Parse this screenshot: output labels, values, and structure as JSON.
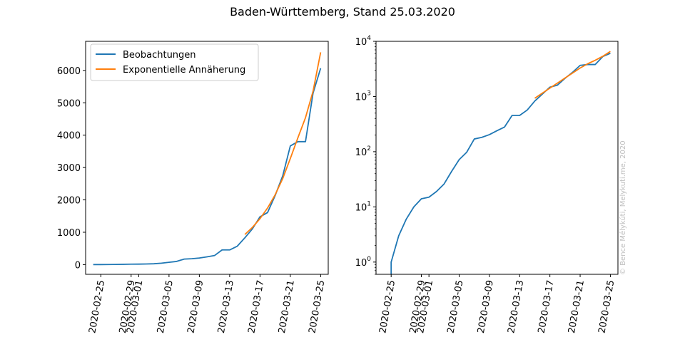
{
  "figure": {
    "title": "Baden-Württemberg, Stand 25.03.2020",
    "credit": "© Bence Mélykúti, Melykuti.me, 2020"
  },
  "chart_data": [
    {
      "type": "line",
      "scale": "linear",
      "xlim": [
        "2020-02-23",
        "2020-03-26"
      ],
      "ylim": [
        -300,
        6900
      ],
      "xticks": [
        "2020-02-25",
        "2020-02-29",
        "2020-03-01",
        "2020-03-05",
        "2020-03-09",
        "2020-03-13",
        "2020-03-17",
        "2020-03-21",
        "2020-03-25"
      ],
      "yticks": [
        0,
        1000,
        2000,
        3000,
        4000,
        5000,
        6000
      ],
      "ytick_labels": [
        "0",
        "1000",
        "2000",
        "3000",
        "4000",
        "5000",
        "6000"
      ],
      "legend": {
        "position": "upper-left"
      },
      "series": [
        {
          "name": "Beobachtungen",
          "color": "#1f77b4",
          "points": [
            [
              "2020-02-24",
              1
            ],
            [
              "2020-02-25",
              1
            ],
            [
              "2020-02-26",
              3
            ],
            [
              "2020-02-27",
              6
            ],
            [
              "2020-02-28",
              10
            ],
            [
              "2020-02-29",
              14
            ],
            [
              "2020-03-01",
              15
            ],
            [
              "2020-03-02",
              19
            ],
            [
              "2020-03-03",
              26
            ],
            [
              "2020-03-04",
              44
            ],
            [
              "2020-03-05",
              72
            ],
            [
              "2020-03-06",
              98
            ],
            [
              "2020-03-07",
              170
            ],
            [
              "2020-03-08",
              182
            ],
            [
              "2020-03-09",
              204
            ],
            [
              "2020-03-10",
              240
            ],
            [
              "2020-03-11",
              280
            ],
            [
              "2020-03-12",
              454
            ],
            [
              "2020-03-13",
              454
            ],
            [
              "2020-03-14",
              569
            ],
            [
              "2020-03-15",
              827
            ],
            [
              "2020-03-16",
              1105
            ],
            [
              "2020-03-17",
              1477
            ],
            [
              "2020-03-18",
              1609
            ],
            [
              "2020-03-19",
              2136
            ],
            [
              "2020-03-20",
              2746
            ],
            [
              "2020-03-21",
              3668
            ],
            [
              "2020-03-22",
              3800
            ],
            [
              "2020-03-23",
              3800
            ],
            [
              "2020-03-24",
              5300
            ],
            [
              "2020-03-25",
              6069
            ]
          ]
        },
        {
          "name": "Exponentielle Annäherung",
          "color": "#ff7f0e",
          "points": [
            [
              "2020-03-15",
              930
            ],
            [
              "2020-03-16",
              1150
            ],
            [
              "2020-03-17",
              1420
            ],
            [
              "2020-03-18",
              1750
            ],
            [
              "2020-03-19",
              2160
            ],
            [
              "2020-03-20",
              2660
            ],
            [
              "2020-03-21",
              3280
            ],
            [
              "2020-03-22",
              3920
            ],
            [
              "2020-03-23",
              4540
            ],
            [
              "2020-03-24",
              5360
            ],
            [
              "2020-03-25",
              6560
            ]
          ]
        }
      ]
    },
    {
      "type": "line",
      "scale": "log",
      "xlim": [
        "2020-02-23",
        "2020-03-26"
      ],
      "ylim": [
        0.6,
        10000
      ],
      "xticks": [
        "2020-02-25",
        "2020-02-29",
        "2020-03-01",
        "2020-03-05",
        "2020-03-09",
        "2020-03-13",
        "2020-03-17",
        "2020-03-21",
        "2020-03-25"
      ],
      "yticks": [
        1,
        10,
        100,
        1000,
        10000
      ],
      "ytick_mantissa": [
        "10",
        "10",
        "10",
        "10",
        "10"
      ],
      "ytick_exponents": [
        "0",
        "1",
        "2",
        "3",
        "4"
      ],
      "series": [
        {
          "name": "Beobachtungen",
          "color": "#1f77b4",
          "points": [
            [
              "2020-02-25",
              0.3
            ],
            [
              "2020-02-25",
              1
            ],
            [
              "2020-02-26",
              3
            ],
            [
              "2020-02-27",
              6
            ],
            [
              "2020-02-28",
              10
            ],
            [
              "2020-02-29",
              14
            ],
            [
              "2020-03-01",
              15
            ],
            [
              "2020-03-02",
              19
            ],
            [
              "2020-03-03",
              26
            ],
            [
              "2020-03-04",
              44
            ],
            [
              "2020-03-05",
              72
            ],
            [
              "2020-03-06",
              98
            ],
            [
              "2020-03-07",
              170
            ],
            [
              "2020-03-08",
              182
            ],
            [
              "2020-03-09",
              204
            ],
            [
              "2020-03-10",
              240
            ],
            [
              "2020-03-11",
              280
            ],
            [
              "2020-03-12",
              454
            ],
            [
              "2020-03-13",
              454
            ],
            [
              "2020-03-14",
              569
            ],
            [
              "2020-03-15",
              827
            ],
            [
              "2020-03-16",
              1105
            ],
            [
              "2020-03-17",
              1477
            ],
            [
              "2020-03-18",
              1609
            ],
            [
              "2020-03-19",
              2136
            ],
            [
              "2020-03-20",
              2746
            ],
            [
              "2020-03-21",
              3668
            ],
            [
              "2020-03-22",
              3800
            ],
            [
              "2020-03-23",
              3800
            ],
            [
              "2020-03-24",
              5300
            ],
            [
              "2020-03-25",
              6069
            ]
          ]
        },
        {
          "name": "Exponentielle Annäherung",
          "color": "#ff7f0e",
          "points": [
            [
              "2020-03-15",
              930
            ],
            [
              "2020-03-16",
              1150
            ],
            [
              "2020-03-17",
              1420
            ],
            [
              "2020-03-18",
              1750
            ],
            [
              "2020-03-19",
              2160
            ],
            [
              "2020-03-20",
              2660
            ],
            [
              "2020-03-21",
              3280
            ],
            [
              "2020-03-22",
              3920
            ],
            [
              "2020-03-23",
              4540
            ],
            [
              "2020-03-24",
              5360
            ],
            [
              "2020-03-25",
              6560
            ]
          ]
        }
      ]
    }
  ]
}
